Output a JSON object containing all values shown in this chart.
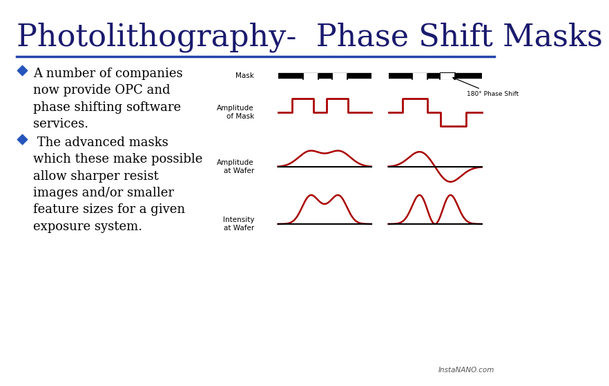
{
  "title": "Photolithography-  Phase Shift Masks",
  "title_color": "#1a1a6e",
  "title_fontsize": 32,
  "bg_color": "#ffffff",
  "divider_color": "#2244aa",
  "bullet_color": "#2655bb",
  "text_color": "#000000",
  "bullet1_lines": [
    "A number of companies",
    "now provide OPC and",
    "phase shifting software",
    "services."
  ],
  "bullet2_lines": [
    " The advanced masks",
    "which these make possible",
    "allow sharper resist",
    "images and/or smaller",
    "feature sizes for a given",
    "exposure system."
  ],
  "wave_color": "#aa0000",
  "mask_label": "Mask",
  "amp_mask_label": "Amplitude\nof Mask",
  "amp_wafer_label": "Amplitude\nat Wafer",
  "int_wafer_label": "Intensity\nat Wafer",
  "phase_shift_label": "180° Phase Shift",
  "phase_shift_box_color": "#aaddff",
  "footer": "InstaNANO.com"
}
